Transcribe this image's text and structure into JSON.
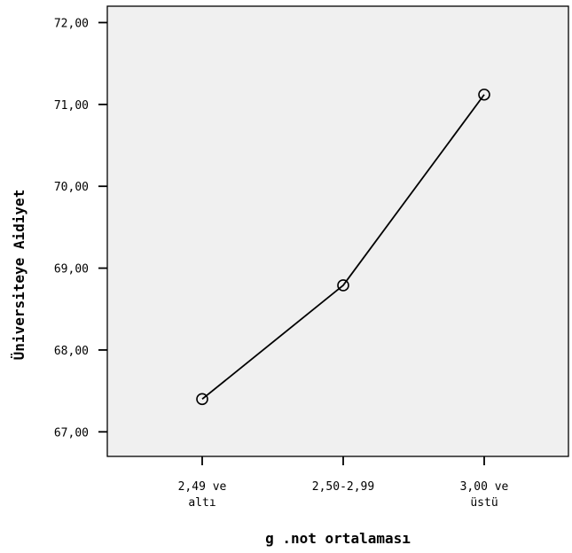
{
  "chart_data": {
    "type": "line",
    "title": "",
    "xlabel": "g .not ortalaması",
    "ylabel": "Üniversiteye Aidiyet",
    "categories": [
      [
        "2,49 ve",
        "altı"
      ],
      [
        "2,50-2,99"
      ],
      [
        "3,00 ve",
        "üstü"
      ]
    ],
    "values": [
      67.4,
      68.79,
      71.12
    ],
    "yticks": [
      "67,00",
      "68,00",
      "69,00",
      "70,00",
      "71,00",
      "72,00"
    ],
    "ylim": [
      66.7,
      72.2
    ],
    "grid": false,
    "marker": "open-circle",
    "colors": {
      "plot_background": "#f0f0f0",
      "line": "#000000",
      "axis": "#000000"
    }
  }
}
